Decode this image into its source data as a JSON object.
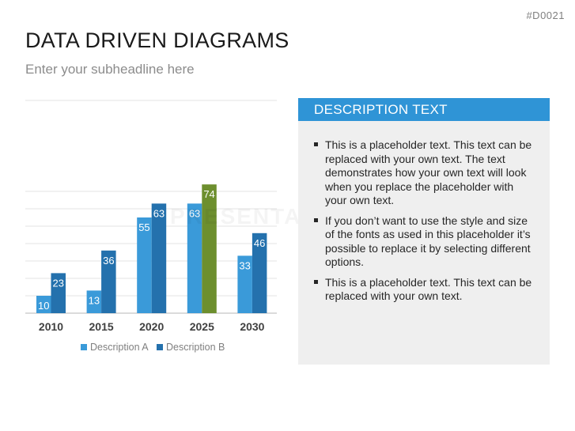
{
  "slide_id": "#D0021",
  "header": {
    "title": "DATA DRIVEN DIAGRAMS",
    "subtitle": "Enter your subheadline here"
  },
  "watermark": "PRESENTATIO",
  "description": {
    "heading": "DESCRIPTION TEXT",
    "bullets": [
      "This is a placeholder text. This text can be replaced with your own text. The text demonstrates how your own text will look when you replace the placeholder with your own text.",
      "If you don’t want to use the style and size of the fonts as used in this placeholder it’s possible to replace it by selecting different options.",
      "This is a placeholder text. This text can be replaced with your own text."
    ]
  },
  "colors": {
    "series_a": "#3a9ad9",
    "series_b": "#2471ad",
    "highlight": "#6d8f2e",
    "header_bg": "#2f94d6",
    "panel_bg": "#efefef"
  },
  "chart_data": {
    "type": "bar",
    "categories": [
      "2010",
      "2015",
      "2020",
      "2025",
      "2030"
    ],
    "series": [
      {
        "name": "Description A",
        "values": [
          10,
          13,
          55,
          63,
          33
        ]
      },
      {
        "name": "Description B",
        "values": [
          23,
          36,
          63,
          74,
          46
        ]
      }
    ],
    "highlight": {
      "series": 1,
      "category": 3
    },
    "ylim": [
      0,
      80
    ],
    "grid": true,
    "legend": "bottom",
    "data_labels": true
  }
}
